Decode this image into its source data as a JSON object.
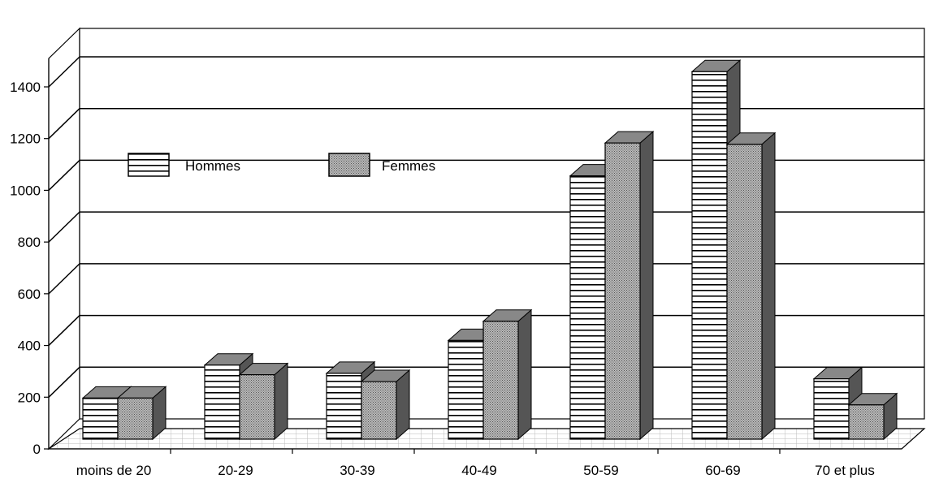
{
  "chart_data": {
    "type": "bar",
    "title": "",
    "xlabel": "",
    "ylabel": "",
    "categories": [
      "moins de 20",
      "20-29",
      "30-39",
      "40-49",
      "50-59",
      "60-69",
      "70 et plus"
    ],
    "series": [
      {
        "name": "Hommes",
        "values": [
          150,
          270,
          240,
          360,
          960,
          1340,
          220
        ]
      },
      {
        "name": "Femmes",
        "values": [
          150,
          235,
          210,
          430,
          1080,
          1075,
          125
        ]
      }
    ],
    "ylim": [
      0,
      1400
    ],
    "yticks": [
      "0",
      "200",
      "400",
      "600",
      "800",
      "1000",
      "1200",
      "1400"
    ],
    "grid": true,
    "legend_position": "top-left",
    "three_d": true,
    "colors": {
      "hommes_pattern": "horizontal-stripes",
      "femmes_fill": "#a8a8a8",
      "side": "#555555",
      "top": "#888888"
    }
  }
}
